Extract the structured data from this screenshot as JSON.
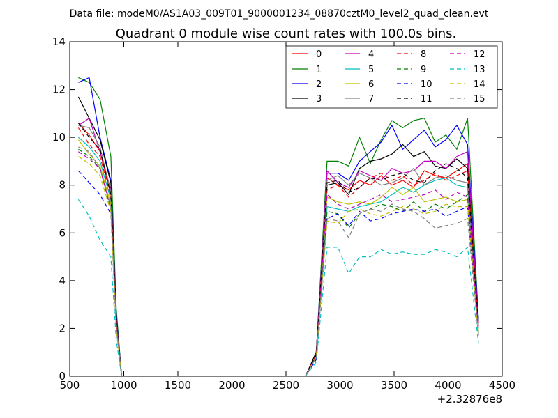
{
  "chart_data": {
    "type": "line",
    "suptitle": "Data file: modeM0/AS1A03_009T01_9000001234_08870cztM0_level2_quad_clean.evt",
    "title": "Quadrant 0 module wise count rates with 100.0s bins.",
    "xlabel": "",
    "ylabel": "",
    "x_offset_label": "+2.32876e8",
    "xlim": [
      500,
      4500
    ],
    "ylim": [
      0,
      14
    ],
    "xticks": [
      500,
      1000,
      1500,
      2000,
      2500,
      3000,
      3500,
      4000,
      4500
    ],
    "yticks": [
      0,
      2,
      4,
      6,
      8,
      10,
      12,
      14
    ],
    "legend_position": "top-right",
    "grid": false,
    "x": [
      580,
      680,
      780,
      880,
      930,
      980,
      1080,
      1180,
      1280,
      1380,
      1480,
      1580,
      1680,
      1780,
      1880,
      1980,
      2080,
      2180,
      2280,
      2380,
      2480,
      2580,
      2680,
      2780,
      2880,
      2980,
      3080,
      3180,
      3280,
      3380,
      3480,
      3580,
      3680,
      3780,
      3880,
      3980,
      4080,
      4180,
      4280
    ],
    "series": [
      {
        "name": "0",
        "color": "#ff0000",
        "dash": "solid",
        "values": [
          10.6,
          10.1,
          9.4,
          7.6,
          2.4,
          0,
          0,
          0,
          0,
          0,
          0,
          0,
          0,
          0,
          0,
          0,
          0,
          0,
          0,
          0,
          0,
          0,
          0,
          0.9,
          8.3,
          8.0,
          7.8,
          8.2,
          8.0,
          8.4,
          8.0,
          8.2,
          7.9,
          8.6,
          8.4,
          8.3,
          8.6,
          8.9,
          2.2
        ]
      },
      {
        "name": "1",
        "color": "#008000",
        "dash": "solid",
        "values": [
          12.5,
          12.3,
          11.6,
          9.2,
          2.8,
          0,
          0,
          0,
          0,
          0,
          0,
          0,
          0,
          0,
          0,
          0,
          0,
          0,
          0,
          0,
          0,
          0,
          0,
          1.0,
          9.0,
          9.0,
          8.8,
          10.0,
          8.9,
          9.9,
          10.7,
          10.4,
          10.7,
          10.8,
          9.8,
          10.1,
          9.5,
          10.8,
          2.4
        ]
      },
      {
        "name": "2",
        "color": "#0000ff",
        "dash": "solid",
        "values": [
          12.3,
          12.5,
          10.0,
          8.2,
          2.6,
          0,
          0,
          0,
          0,
          0,
          0,
          0,
          0,
          0,
          0,
          0,
          0,
          0,
          0,
          0,
          0,
          0,
          0,
          1.0,
          8.5,
          8.5,
          8.2,
          9.0,
          9.4,
          9.8,
          10.5,
          9.5,
          9.9,
          10.3,
          9.6,
          9.9,
          10.5,
          9.7,
          2.4
        ]
      },
      {
        "name": "3",
        "color": "#000000",
        "dash": "solid",
        "values": [
          11.7,
          10.8,
          9.9,
          8.1,
          2.5,
          0,
          0,
          0,
          0,
          0,
          0,
          0,
          0,
          0,
          0,
          0,
          0,
          0,
          0,
          0,
          0,
          0,
          0,
          1.0,
          8.0,
          8.1,
          7.6,
          8.7,
          9.0,
          9.1,
          9.3,
          9.7,
          9.2,
          9.4,
          8.8,
          8.7,
          9.1,
          8.7,
          2.3
        ]
      },
      {
        "name": "4",
        "color": "#bf00bf",
        "dash": "solid",
        "values": [
          10.5,
          10.8,
          9.4,
          7.8,
          2.4,
          0,
          0,
          0,
          0,
          0,
          0,
          0,
          0,
          0,
          0,
          0,
          0,
          0,
          0,
          0,
          0,
          0,
          0,
          0.9,
          8.6,
          8.1,
          7.9,
          8.6,
          8.4,
          8.2,
          8.7,
          8.5,
          8.6,
          9.0,
          9.0,
          8.7,
          9.2,
          9.4,
          2.2
        ]
      },
      {
        "name": "5",
        "color": "#00bfbf",
        "dash": "solid",
        "values": [
          10.0,
          9.6,
          9.0,
          7.4,
          2.3,
          0,
          0,
          0,
          0,
          0,
          0,
          0,
          0,
          0,
          0,
          0,
          0,
          0,
          0,
          0,
          0,
          0,
          0,
          0.9,
          7.1,
          7.0,
          6.9,
          7.1,
          7.2,
          7.3,
          7.6,
          7.9,
          7.7,
          8.0,
          8.2,
          8.3,
          8.0,
          7.9,
          2.0
        ]
      },
      {
        "name": "6",
        "color": "#bfbf00",
        "dash": "solid",
        "values": [
          9.9,
          9.3,
          8.8,
          7.2,
          2.2,
          0,
          0,
          0,
          0,
          0,
          0,
          0,
          0,
          0,
          0,
          0,
          0,
          0,
          0,
          0,
          0,
          0,
          0,
          0.8,
          7.5,
          7.3,
          7.2,
          7.3,
          7.2,
          7.5,
          7.9,
          7.6,
          7.9,
          7.3,
          7.4,
          7.5,
          7.3,
          7.4,
          1.9
        ]
      },
      {
        "name": "7",
        "color": "#808080",
        "dash": "solid",
        "values": [
          10.5,
          10.4,
          9.6,
          7.7,
          2.3,
          0,
          0,
          0,
          0,
          0,
          0,
          0,
          0,
          0,
          0,
          0,
          0,
          0,
          0,
          0,
          0,
          0,
          0,
          0.9,
          8.2,
          8.4,
          8.0,
          8.5,
          8.3,
          8.0,
          8.1,
          8.3,
          8.7,
          8.0,
          8.3,
          8.4,
          8.2,
          8.1,
          2.1
        ]
      },
      {
        "name": "8",
        "color": "#ff0000",
        "dash": "dashed",
        "values": [
          10.4,
          9.7,
          9.2,
          7.5,
          2.3,
          0,
          0,
          0,
          0,
          0,
          0,
          0,
          0,
          0,
          0,
          0,
          0,
          0,
          0,
          0,
          0,
          0,
          0,
          0.9,
          7.8,
          8.0,
          7.5,
          7.9,
          8.3,
          8.5,
          8.2,
          8.4,
          8.0,
          8.2,
          8.5,
          8.2,
          8.4,
          8.6,
          2.1
        ]
      },
      {
        "name": "9",
        "color": "#008000",
        "dash": "dashed",
        "values": [
          9.5,
          9.2,
          8.7,
          7.0,
          2.1,
          0,
          0,
          0,
          0,
          0,
          0,
          0,
          0,
          0,
          0,
          0,
          0,
          0,
          0,
          0,
          0,
          0,
          0,
          0.8,
          6.9,
          6.8,
          6.2,
          6.8,
          7.0,
          7.2,
          7.1,
          6.9,
          7.3,
          6.9,
          7.2,
          7.0,
          7.3,
          7.6,
          1.8
        ]
      },
      {
        "name": "10",
        "color": "#0000ff",
        "dash": "dashed",
        "values": [
          8.6,
          8.1,
          7.6,
          6.8,
          2.0,
          0,
          0,
          0,
          0,
          0,
          0,
          0,
          0,
          0,
          0,
          0,
          0,
          0,
          0,
          0,
          0,
          0,
          0,
          0.7,
          6.6,
          6.8,
          6.3,
          6.9,
          6.5,
          6.6,
          6.8,
          6.9,
          7.0,
          6.9,
          7.0,
          6.7,
          6.9,
          7.1,
          1.7
        ]
      },
      {
        "name": "11",
        "color": "#000000",
        "dash": "dashed",
        "values": [
          10.6,
          10.0,
          9.5,
          7.6,
          2.4,
          0,
          0,
          0,
          0,
          0,
          0,
          0,
          0,
          0,
          0,
          0,
          0,
          0,
          0,
          0,
          0,
          0,
          0,
          0.9,
          8.1,
          8.2,
          7.7,
          7.9,
          8.3,
          8.2,
          8.4,
          8.5,
          8.2,
          8.1,
          8.6,
          8.9,
          8.7,
          8.3,
          2.2
        ]
      },
      {
        "name": "12",
        "color": "#bf00bf",
        "dash": "dashed",
        "values": [
          9.4,
          9.1,
          8.7,
          7.0,
          2.1,
          0,
          0,
          0,
          0,
          0,
          0,
          0,
          0,
          0,
          0,
          0,
          0,
          0,
          0,
          0,
          0,
          0,
          0,
          0.8,
          7.6,
          7.2,
          7.0,
          7.2,
          7.4,
          7.6,
          7.3,
          7.4,
          7.5,
          7.6,
          7.8,
          7.4,
          7.7,
          7.5,
          1.9
        ]
      },
      {
        "name": "13",
        "color": "#00bfbf",
        "dash": "dashed",
        "values": [
          7.4,
          6.7,
          5.7,
          5.0,
          1.5,
          0,
          0,
          0,
          0,
          0,
          0,
          0,
          0,
          0,
          0,
          0,
          0,
          0,
          0,
          0,
          0,
          0,
          0,
          0.6,
          5.4,
          5.4,
          4.3,
          5.0,
          5.0,
          5.3,
          5.1,
          5.2,
          5.1,
          5.1,
          5.3,
          5.2,
          5.0,
          5.4,
          1.4
        ]
      },
      {
        "name": "14",
        "color": "#bfbf00",
        "dash": "dashed",
        "values": [
          9.2,
          8.9,
          8.4,
          6.9,
          2.0,
          0,
          0,
          0,
          0,
          0,
          0,
          0,
          0,
          0,
          0,
          0,
          0,
          0,
          0,
          0,
          0,
          0,
          0,
          0.8,
          6.5,
          6.4,
          6.9,
          7.0,
          6.8,
          6.7,
          6.9,
          7.1,
          7.0,
          6.8,
          6.9,
          7.2,
          7.1,
          7.1,
          1.7
        ]
      },
      {
        "name": "15",
        "color": "#808080",
        "dash": "dashed",
        "values": [
          9.6,
          9.4,
          8.7,
          7.1,
          2.2,
          0,
          0,
          0,
          0,
          0,
          0,
          0,
          0,
          0,
          0,
          0,
          0,
          0,
          0,
          0,
          0,
          0,
          0,
          0.8,
          6.6,
          6.5,
          5.8,
          6.8,
          7.0,
          6.9,
          7.2,
          7.0,
          6.9,
          6.6,
          6.2,
          6.3,
          6.4,
          6.6,
          1.7
        ]
      }
    ]
  }
}
